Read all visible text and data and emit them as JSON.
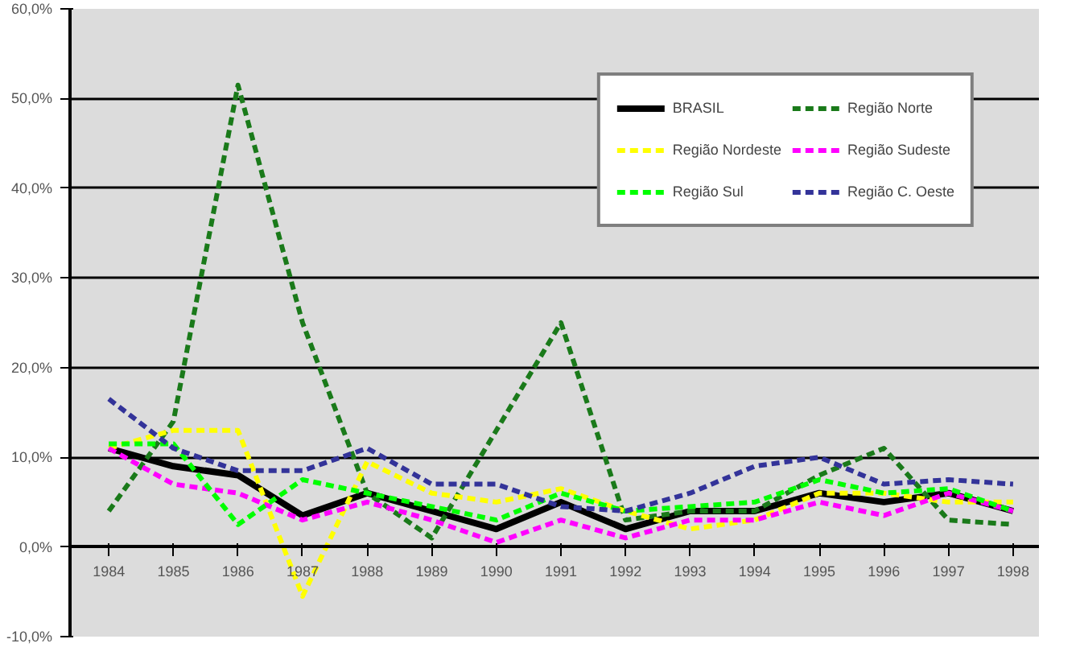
{
  "chart_data": {
    "type": "line",
    "categories": [
      "1984",
      "1985",
      "1986",
      "1987",
      "1988",
      "1989",
      "1990",
      "1991",
      "1992",
      "1993",
      "1994",
      "1995",
      "1996",
      "1997",
      "1998"
    ],
    "series": [
      {
        "name": "BRASIL",
        "color": "#000000",
        "line_style": "solid",
        "values": [
          11,
          9,
          8,
          3.5,
          6,
          4,
          2,
          5,
          2,
          4,
          4,
          6,
          5,
          6,
          4
        ]
      },
      {
        "name": "Região Norte",
        "color": "#1a7a1a",
        "line_style": "dashed",
        "values": [
          4,
          14,
          51.5,
          25,
          6,
          1,
          13,
          25,
          3,
          4,
          4,
          8,
          11,
          3,
          2.5
        ]
      },
      {
        "name": "Região Nordeste",
        "color": "#ffff00",
        "line_style": "dashed",
        "values": [
          11,
          13,
          13,
          -5.5,
          9.5,
          6,
          5,
          6.5,
          4,
          2,
          3,
          6,
          6,
          5,
          5
        ]
      },
      {
        "name": "Região Sudeste",
        "color": "#ff00ff",
        "line_style": "dashed",
        "values": [
          11,
          7,
          6,
          3,
          5,
          3,
          0.5,
          3,
          1,
          3,
          3,
          5,
          3.5,
          6,
          4
        ]
      },
      {
        "name": "Região Sul",
        "color": "#00ff00",
        "line_style": "dashed",
        "values": [
          11.5,
          11.5,
          2.5,
          7.5,
          6,
          4.5,
          3,
          6,
          4,
          4.5,
          5,
          7.5,
          6,
          6.5,
          4
        ]
      },
      {
        "name": "Região C. Oeste",
        "color": "#333399",
        "line_style": "dashed",
        "values": [
          16.5,
          11,
          8.5,
          8.5,
          11,
          7,
          7,
          4.5,
          4,
          6,
          9,
          10,
          7,
          7.5,
          7
        ]
      }
    ],
    "ylim": [
      -10,
      60
    ],
    "yticks": [
      {
        "value": -10,
        "label": "-10,0%"
      },
      {
        "value": 0,
        "label": "0,0%"
      },
      {
        "value": 10,
        "label": "10,0%"
      },
      {
        "value": 20,
        "label": "20,0%"
      },
      {
        "value": 30,
        "label": "30,0%"
      },
      {
        "value": 40,
        "label": "40,0%"
      },
      {
        "value": 50,
        "label": "50,0%"
      },
      {
        "value": 60,
        "label": "60,0%"
      }
    ],
    "grid": "y",
    "legend": "top right",
    "marker": "none"
  }
}
